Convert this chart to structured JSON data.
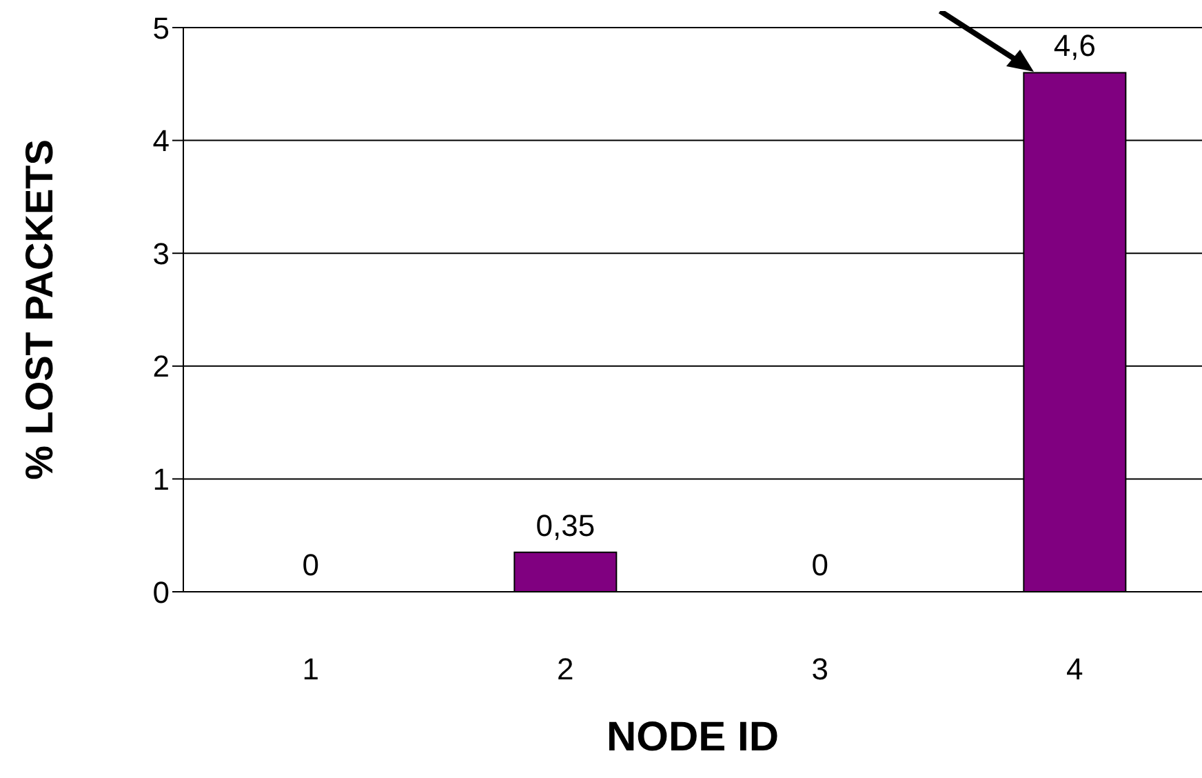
{
  "chart_data": {
    "type": "bar",
    "xlabel": "NODE ID",
    "ylabel": "% LOST PACKETS",
    "categories": [
      "1",
      "2",
      "3",
      "4"
    ],
    "values": [
      0,
      0.35,
      0,
      4.6
    ],
    "color": "#800080",
    "value_labels": [
      "0",
      "0,35",
      "0",
      "4,6"
    ],
    "ylim": [
      0,
      5
    ],
    "yticks": [
      0,
      1,
      2,
      3,
      4,
      5
    ],
    "grid": "y"
  }
}
